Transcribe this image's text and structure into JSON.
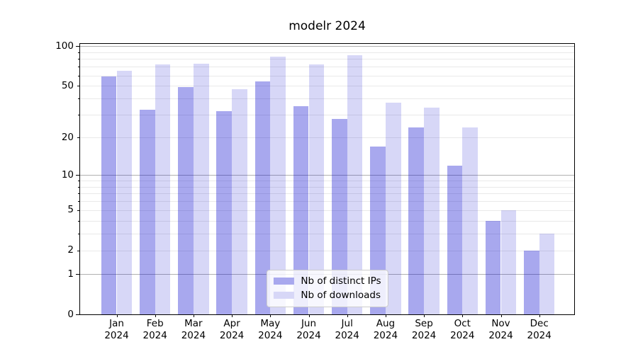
{
  "figure": {
    "title": "modelr 2024"
  },
  "chart_data": {
    "type": "bar",
    "title": "modelr 2024",
    "categories": [
      "Jan",
      "Feb",
      "Mar",
      "Apr",
      "May",
      "Jun",
      "Jul",
      "Aug",
      "Sep",
      "Oct",
      "Nov",
      "Dec"
    ],
    "category_year": "2024",
    "series": [
      {
        "name": "Nb of distinct IPs",
        "color": "rgba(0,0,205,0.34)",
        "solid_color": "#a8a8ee",
        "values": [
          59,
          33,
          49,
          32,
          54,
          35,
          28,
          17,
          24,
          12,
          4,
          2
        ]
      },
      {
        "name": "Nb of downloads",
        "color": "rgba(0,0,205,0.155)",
        "solid_color": "#d7d7f7",
        "values": [
          65,
          73,
          74,
          47,
          83,
          73,
          85,
          37,
          34,
          24,
          5,
          3
        ]
      }
    ],
    "xlabel": "",
    "ylabel": "",
    "y_axis": {
      "scale": "log1p",
      "min": 0,
      "max": 104,
      "labeled_ticks": [
        100,
        50,
        20,
        10,
        5,
        2,
        1,
        0
      ],
      "major_gridlines": [
        1,
        10,
        100
      ],
      "minor_gridlines": [
        2,
        3,
        4,
        5,
        6,
        7,
        8,
        9,
        20,
        30,
        40,
        50,
        60,
        70,
        80,
        90
      ]
    },
    "grid": "horizontal",
    "legend_position": "lower center",
    "colors": {
      "major_grid": "#b0b0b0",
      "minor_grid": "#e9e9e9",
      "spine": "#000000",
      "background": "#ffffff"
    }
  }
}
